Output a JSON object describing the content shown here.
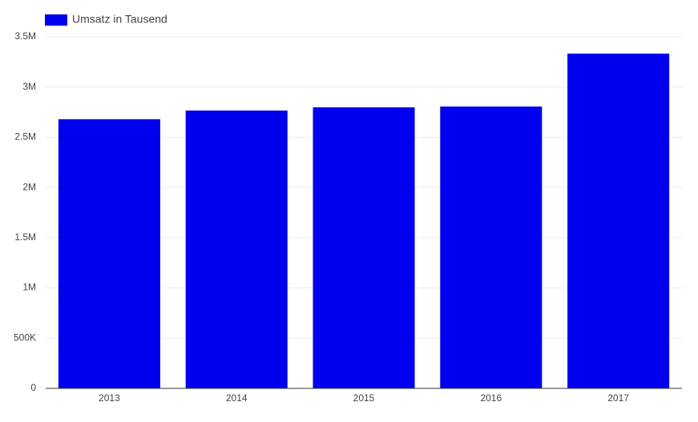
{
  "chart_data": {
    "type": "bar",
    "categories": [
      "2013",
      "2014",
      "2015",
      "2016",
      "2017"
    ],
    "series": [
      {
        "name": "Umsatz in Tausend",
        "color": "#0000ee",
        "values": [
          2680000,
          2766000,
          2798000,
          2806000,
          3333000
        ]
      }
    ],
    "ylim": [
      0,
      3500000
    ],
    "yticks": [
      0,
      {
        "value": 500000,
        "label": "500K"
      },
      {
        "value": 1000000,
        "label": "1M"
      },
      {
        "value": 1500000,
        "label": "1.5M"
      },
      {
        "value": 2000000,
        "label": "2M"
      },
      {
        "value": 2500000,
        "label": "2.5M"
      },
      {
        "value": 3000000,
        "label": "3M"
      },
      {
        "value": 3500000,
        "label": "3.5M"
      }
    ],
    "grid": true,
    "legend": "top-left"
  }
}
